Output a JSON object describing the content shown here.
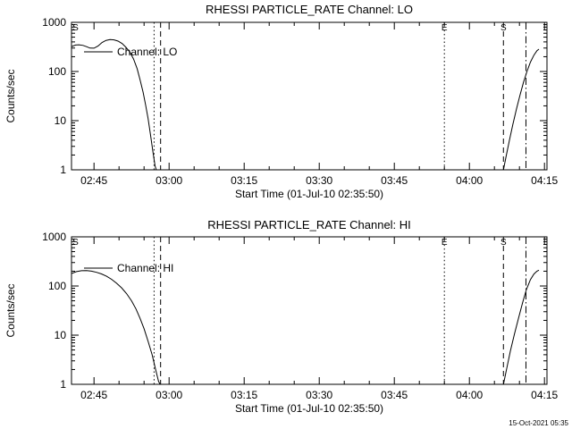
{
  "footer": {
    "timestamp": "15-Oct-2021 05:35"
  },
  "chart_data": [
    {
      "type": "line",
      "title": "RHESSI PARTICLE_RATE Channel: LO",
      "ylabel": "Counts/sec",
      "xlabel": "Start Time (01-Jul-10 02:35:50)",
      "legend": "Channel: LO",
      "y_scale": "log",
      "y_range": [
        1,
        1000
      ],
      "y_ticks": [
        1,
        10,
        100,
        1000
      ],
      "x_range_minutes": [
        160.5,
        255.5
      ],
      "x_ticks": [
        {
          "t": 165,
          "label": "02:45"
        },
        {
          "t": 180,
          "label": "03:00"
        },
        {
          "t": 195,
          "label": "03:15"
        },
        {
          "t": 210,
          "label": "03:30"
        },
        {
          "t": 225,
          "label": "03:45"
        },
        {
          "t": 240,
          "label": "04:00"
        },
        {
          "t": 255,
          "label": "04:15"
        }
      ],
      "x_minor_step": 5,
      "series_segments": [
        [
          [
            160.5,
            320
          ],
          [
            161.3,
            345
          ],
          [
            162.0,
            350
          ],
          [
            162.8,
            340
          ],
          [
            163.5,
            320
          ],
          [
            164.2,
            300
          ],
          [
            165.0,
            298
          ],
          [
            165.8,
            330
          ],
          [
            166.6,
            390
          ],
          [
            167.4,
            430
          ],
          [
            168.2,
            445
          ],
          [
            169.0,
            440
          ],
          [
            169.8,
            415
          ],
          [
            170.6,
            370
          ],
          [
            171.4,
            310
          ],
          [
            172.2,
            245
          ],
          [
            172.9,
            180
          ],
          [
            173.6,
            115
          ],
          [
            174.2,
            68
          ],
          [
            174.8,
            38
          ],
          [
            175.3,
            21
          ],
          [
            175.8,
            11
          ],
          [
            176.3,
            5
          ],
          [
            176.8,
            2.2
          ],
          [
            177.2,
            1.2
          ],
          [
            177.45,
            1.0
          ]
        ],
        [
          [
            246.8,
            1.0
          ],
          [
            247.4,
            2.0
          ],
          [
            248.0,
            4.0
          ],
          [
            248.7,
            8.5
          ],
          [
            249.4,
            17
          ],
          [
            250.1,
            33
          ],
          [
            250.8,
            60
          ],
          [
            251.5,
            100
          ],
          [
            252.2,
            155
          ],
          [
            252.9,
            215
          ],
          [
            253.5,
            265
          ],
          [
            253.9,
            285
          ]
        ]
      ],
      "event_lines": [
        {
          "t": 177.0,
          "style": "dotted"
        },
        {
          "t": 178.3,
          "style": "dashed"
        },
        {
          "t": 235.0,
          "style": "dotted"
        },
        {
          "t": 246.8,
          "style": "dashed"
        },
        {
          "t": 251.3,
          "style": "dashdot"
        }
      ],
      "flags": [
        {
          "t": 161.3,
          "label": "S"
        },
        {
          "t": 235.0,
          "label": "E"
        },
        {
          "t": 246.8,
          "label": "S"
        }
      ]
    },
    {
      "type": "line",
      "title": "RHESSI PARTICLE_RATE Channel: HI",
      "ylabel": "Counts/sec",
      "xlabel": "Start Time (01-Jul-10 02:35:50)",
      "legend": "Channel: HI",
      "y_scale": "log",
      "y_range": [
        1,
        1000
      ],
      "y_ticks": [
        1,
        10,
        100,
        1000
      ],
      "x_range_minutes": [
        160.5,
        255.5
      ],
      "x_ticks": [
        {
          "t": 165,
          "label": "02:45"
        },
        {
          "t": 180,
          "label": "03:00"
        },
        {
          "t": 195,
          "label": "03:15"
        },
        {
          "t": 210,
          "label": "03:30"
        },
        {
          "t": 225,
          "label": "03:45"
        },
        {
          "t": 240,
          "label": "04:00"
        },
        {
          "t": 255,
          "label": "04:15"
        }
      ],
      "x_minor_step": 5,
      "series_segments": [
        [
          [
            160.5,
            180
          ],
          [
            161.5,
            196
          ],
          [
            162.5,
            205
          ],
          [
            163.5,
            206
          ],
          [
            164.5,
            200
          ],
          [
            165.5,
            190
          ],
          [
            166.5,
            176
          ],
          [
            167.5,
            158
          ],
          [
            168.5,
            137
          ],
          [
            169.5,
            114
          ],
          [
            170.5,
            92
          ],
          [
            171.5,
            70
          ],
          [
            172.5,
            50
          ],
          [
            173.4,
            34
          ],
          [
            174.2,
            22
          ],
          [
            175.0,
            13.5
          ],
          [
            175.8,
            7.5
          ],
          [
            176.6,
            4
          ],
          [
            177.3,
            2
          ],
          [
            177.9,
            1.15
          ],
          [
            178.2,
            1.0
          ]
        ],
        [
          [
            246.8,
            1.0
          ],
          [
            247.5,
            2.2
          ],
          [
            248.2,
            4.8
          ],
          [
            249.0,
            10.5
          ],
          [
            249.8,
            22
          ],
          [
            250.6,
            45
          ],
          [
            251.4,
            85
          ],
          [
            252.2,
            135
          ],
          [
            252.9,
            175
          ],
          [
            253.5,
            200
          ],
          [
            253.9,
            210
          ]
        ]
      ],
      "event_lines": [
        {
          "t": 177.0,
          "style": "dotted"
        },
        {
          "t": 178.3,
          "style": "dashed"
        },
        {
          "t": 235.0,
          "style": "dotted"
        },
        {
          "t": 246.8,
          "style": "dashed"
        },
        {
          "t": 251.3,
          "style": "dashdot"
        }
      ],
      "flags": [
        {
          "t": 161.3,
          "label": "S"
        },
        {
          "t": 235.0,
          "label": "E"
        },
        {
          "t": 246.8,
          "label": "S"
        }
      ]
    }
  ]
}
